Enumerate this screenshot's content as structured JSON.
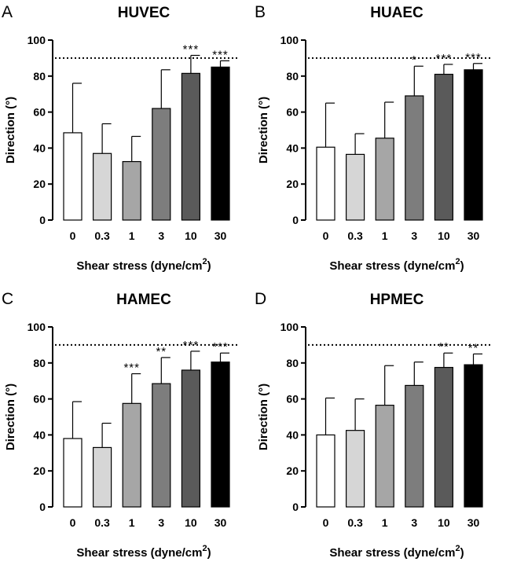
{
  "chart_data": [
    {
      "type": "bar",
      "panel_label": "A",
      "title": "HUVEC",
      "xlabel": "Shear stress (dyne/cm",
      "xlabel_sup": "2",
      "xlabel_end": ")",
      "ylabel": "Direction (°)",
      "ylim": [
        0,
        100
      ],
      "yticks": [
        "0",
        "20",
        "40",
        "60",
        "80",
        "100"
      ],
      "reference_line": 90,
      "categories": [
        "0",
        "0.3",
        "1",
        "3",
        "10",
        "30"
      ],
      "values": [
        48.5,
        37,
        32.5,
        62,
        81.5,
        85
      ],
      "errors": [
        27.5,
        16.5,
        14,
        21.5,
        10,
        3.5
      ],
      "significance": [
        "",
        "",
        "",
        "",
        "***",
        "***"
      ],
      "colors": [
        "#ffffff",
        "#d6d6d6",
        "#a6a6a6",
        "#7d7d7d",
        "#5a5a5a",
        "#000000"
      ]
    },
    {
      "type": "bar",
      "panel_label": "B",
      "title": "HUAEC",
      "xlabel": "Shear stress (dyne/cm",
      "xlabel_sup": "2",
      "xlabel_end": ")",
      "ylabel": "Direction (°)",
      "ylim": [
        0,
        100
      ],
      "yticks": [
        "0",
        "20",
        "40",
        "60",
        "80",
        "100"
      ],
      "reference_line": 90,
      "categories": [
        "0",
        "0.3",
        "1",
        "3",
        "10",
        "30"
      ],
      "values": [
        40.5,
        36.5,
        45.5,
        69,
        81,
        83.5
      ],
      "errors": [
        24.5,
        11.5,
        20,
        16.5,
        5.5,
        3.5
      ],
      "significance": [
        "",
        "",
        "",
        "*",
        "***",
        "***"
      ],
      "colors": [
        "#ffffff",
        "#d6d6d6",
        "#a6a6a6",
        "#7d7d7d",
        "#5a5a5a",
        "#000000"
      ]
    },
    {
      "type": "bar",
      "panel_label": "C",
      "title": "HAMEC",
      "xlabel": "Shear stress (dyne/cm",
      "xlabel_sup": "2",
      "xlabel_end": ")",
      "ylabel": "Direction (°)",
      "ylim": [
        0,
        100
      ],
      "yticks": [
        "0",
        "20",
        "40",
        "60",
        "80",
        "100"
      ],
      "reference_line": 90,
      "categories": [
        "0",
        "0.3",
        "1",
        "3",
        "10",
        "30"
      ],
      "values": [
        38,
        33,
        57.5,
        68.5,
        76,
        80.5
      ],
      "errors": [
        20.5,
        13.5,
        16.5,
        14.5,
        10.5,
        5
      ],
      "significance": [
        "",
        "",
        "***",
        "**",
        "***",
        "***"
      ],
      "colors": [
        "#ffffff",
        "#d6d6d6",
        "#a6a6a6",
        "#7d7d7d",
        "#5a5a5a",
        "#000000"
      ]
    },
    {
      "type": "bar",
      "panel_label": "D",
      "title": "HPMEC",
      "xlabel": "Shear stress (dyne/cm",
      "xlabel_sup": "2",
      "xlabel_end": ")",
      "ylabel": "Direction (°)",
      "ylim": [
        0,
        100
      ],
      "yticks": [
        "0",
        "20",
        "40",
        "60",
        "80",
        "100"
      ],
      "reference_line": 90,
      "categories": [
        "0",
        "0.3",
        "1",
        "3",
        "10",
        "30"
      ],
      "values": [
        40,
        42.5,
        56.5,
        67.5,
        77.5,
        79
      ],
      "errors": [
        20.5,
        17.5,
        22,
        13,
        8,
        6
      ],
      "significance": [
        "",
        "",
        "",
        "",
        "**",
        "**"
      ],
      "colors": [
        "#ffffff",
        "#d6d6d6",
        "#a6a6a6",
        "#7d7d7d",
        "#5a5a5a",
        "#000000"
      ]
    }
  ]
}
